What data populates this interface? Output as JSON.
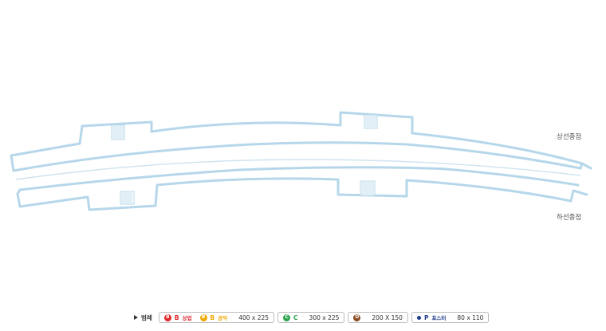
{
  "terminals": {
    "up": "상선종점",
    "down": "하선종점"
  },
  "legend": {
    "title": "범례",
    "title_icon": "triangle-right-icon",
    "groups": [
      {
        "items": [
          {
            "badge": "B",
            "code": "B",
            "sub": "상업",
            "color": "#e0262a"
          },
          {
            "badge": "B",
            "code": "B",
            "sub": "공익",
            "color": "#f0a800"
          }
        ],
        "size": "400 x 225"
      },
      {
        "items": [
          {
            "badge": "C",
            "code": "C",
            "sub": "",
            "color": "#2ea44f"
          }
        ],
        "size": "300 x 225"
      },
      {
        "items": [
          {
            "badge": "D",
            "code": "",
            "sub": "",
            "color": "#8b4a1f"
          }
        ],
        "size": "200 X 150"
      },
      {
        "items": [
          {
            "badge": "",
            "code": "P",
            "sub": "포스터",
            "color": "#1e3a8a",
            "dot": true
          }
        ],
        "size": "80 x 110"
      }
    ]
  }
}
